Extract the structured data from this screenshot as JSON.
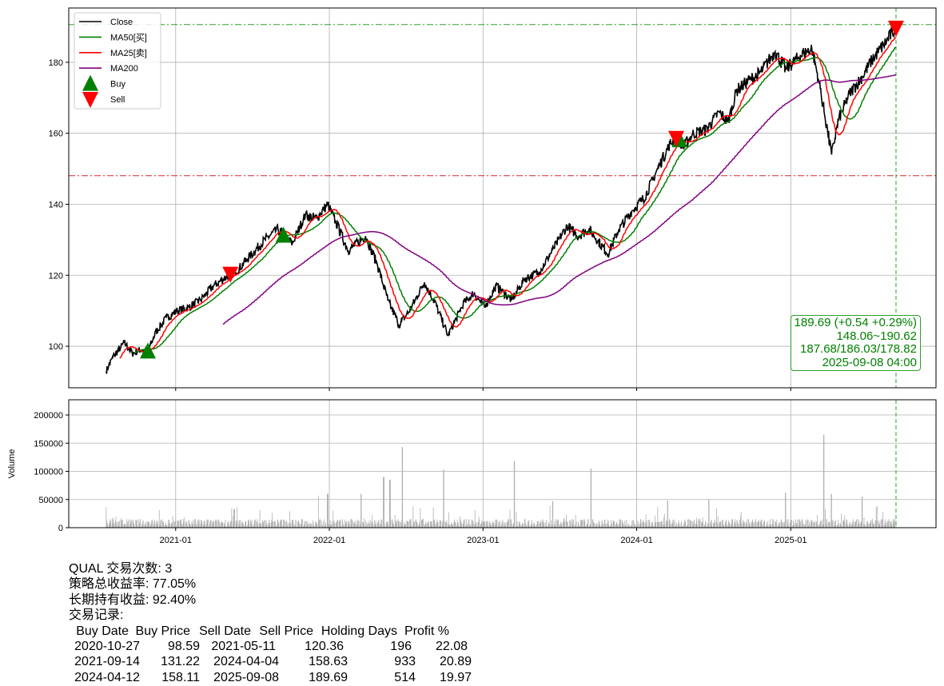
{
  "chart_data": [
    {
      "type": "line",
      "ticker": "QUAL",
      "ylim": [
        88.3,
        195.3
      ],
      "xlim": [
        "2020-04-22",
        "2025-12-12"
      ],
      "yticks": [
        100,
        120,
        140,
        160,
        180
      ],
      "xticks": [
        "2021-01",
        "2022-01",
        "2023-01",
        "2024-01",
        "2025-01"
      ],
      "grid": true,
      "legend": {
        "placement": "top-left",
        "entries": [
          "Close",
          "MA50[买]",
          "MA25[卖]",
          "MA200",
          "Buy",
          "Sell"
        ]
      },
      "colors": {
        "close": "#000000",
        "ma50": "#008000",
        "ma25": "#ff0000",
        "ma200": "#800080",
        "buy": "#008000",
        "sell": "#ff0000"
      },
      "close_series": [
        [
          "2020-07-20",
          93
        ],
        [
          "2020-08-05",
          97
        ],
        [
          "2020-09-01",
          101
        ],
        [
          "2020-09-20",
          98
        ],
        [
          "2020-10-10",
          99
        ],
        [
          "2020-10-27",
          98.59
        ],
        [
          "2020-11-15",
          104
        ],
        [
          "2020-12-10",
          108
        ],
        [
          "2021-01-05",
          110
        ],
        [
          "2021-02-01",
          111
        ],
        [
          "2021-03-01",
          113
        ],
        [
          "2021-04-01",
          117
        ],
        [
          "2021-05-11",
          120.36
        ],
        [
          "2021-06-01",
          122
        ],
        [
          "2021-07-01",
          126
        ],
        [
          "2021-08-01",
          130
        ],
        [
          "2021-09-01",
          133
        ],
        [
          "2021-09-14",
          131.22
        ],
        [
          "2021-10-05",
          129
        ],
        [
          "2021-11-05",
          137
        ],
        [
          "2021-12-01",
          136
        ],
        [
          "2021-12-28",
          140
        ],
        [
          "2022-01-20",
          134
        ],
        [
          "2022-02-15",
          127
        ],
        [
          "2022-03-28",
          131
        ],
        [
          "2022-04-25",
          123
        ],
        [
          "2022-05-20",
          113
        ],
        [
          "2022-06-16",
          106
        ],
        [
          "2022-07-10",
          110
        ],
        [
          "2022-08-15",
          118
        ],
        [
          "2022-09-10",
          112
        ],
        [
          "2022-10-10",
          103
        ],
        [
          "2022-11-15",
          112
        ],
        [
          "2022-12-10",
          115
        ],
        [
          "2023-01-05",
          111
        ],
        [
          "2023-02-01",
          117
        ],
        [
          "2023-03-10",
          113
        ],
        [
          "2023-04-10",
          119
        ],
        [
          "2023-05-15",
          121
        ],
        [
          "2023-06-15",
          127
        ],
        [
          "2023-07-20",
          134
        ],
        [
          "2023-08-15",
          131
        ],
        [
          "2023-09-10",
          133
        ],
        [
          "2023-10-25",
          126
        ],
        [
          "2023-11-20",
          133
        ],
        [
          "2023-12-20",
          138
        ],
        [
          "2024-01-20",
          142
        ],
        [
          "2024-02-20",
          150
        ],
        [
          "2024-03-20",
          157
        ],
        [
          "2024-04-04",
          158.63
        ],
        [
          "2024-04-12",
          158.11
        ],
        [
          "2024-04-20",
          156
        ],
        [
          "2024-05-15",
          160
        ],
        [
          "2024-06-15",
          161
        ],
        [
          "2024-07-15",
          166
        ],
        [
          "2024-08-05",
          163
        ],
        [
          "2024-08-25",
          172
        ],
        [
          "2024-09-25",
          175
        ],
        [
          "2024-10-20",
          177
        ],
        [
          "2024-11-25",
          183
        ],
        [
          "2024-12-20",
          178
        ],
        [
          "2025-01-25",
          182
        ],
        [
          "2025-02-20",
          184
        ],
        [
          "2025-03-10",
          174
        ],
        [
          "2025-04-08",
          154
        ],
        [
          "2025-04-25",
          164
        ],
        [
          "2025-05-20",
          171
        ],
        [
          "2025-06-20",
          176
        ],
        [
          "2025-07-15",
          181
        ],
        [
          "2025-08-10",
          185
        ],
        [
          "2025-09-08",
          189.69
        ]
      ],
      "buy_points": [
        [
          "2020-10-27",
          98.59
        ],
        [
          "2021-09-14",
          131.22
        ],
        [
          "2024-04-12",
          158.11
        ]
      ],
      "sell_points": [
        [
          "2021-05-11",
          120.36
        ],
        [
          "2024-04-04",
          158.63
        ],
        [
          "2025-09-08",
          189.69
        ]
      ],
      "hlines": [
        {
          "value": 190.62,
          "color": "#2ca02c"
        },
        {
          "value": 148.06,
          "color": "#d62728"
        }
      ],
      "vline": "2025-09-08",
      "annotation": [
        "189.69 (+0.54 +0.29%)",
        "148.06~190.62",
        "187.68/186.03/178.82",
        "2025-09-08 04:00"
      ]
    },
    {
      "type": "bar",
      "ylabel": "Volume",
      "ylim": [
        0,
        227000
      ],
      "yticks": [
        0,
        50000,
        100000,
        150000,
        200000
      ],
      "color": "#b0b0b0",
      "typical_volume": 12000,
      "spikes": [
        [
          "2021-05-20",
          33000
        ],
        [
          "2021-12-05",
          57000
        ],
        [
          "2021-12-28",
          60000
        ],
        [
          "2022-03-18",
          60000
        ],
        [
          "2022-05-10",
          90000
        ],
        [
          "2022-05-25",
          85000
        ],
        [
          "2022-06-24",
          143000
        ],
        [
          "2022-09-30",
          103000
        ],
        [
          "2023-03-17",
          118000
        ],
        [
          "2023-06-16",
          47000
        ],
        [
          "2023-09-15",
          105000
        ],
        [
          "2024-03-15",
          48000
        ],
        [
          "2024-06-21",
          50000
        ],
        [
          "2024-12-20",
          62000
        ],
        [
          "2025-03-21",
          165000
        ],
        [
          "2025-04-07",
          60000
        ],
        [
          "2025-06-20",
          55000
        ]
      ]
    }
  ],
  "stats": {
    "title": "QUAL 交易次数: 3",
    "strategy_return": "策略总收益率: 77.05%",
    "hold_return": "长期持有收益: 92.40%",
    "records_label": "交易记录:",
    "columns": [
      "Buy Date",
      "Buy Price",
      "Sell Date",
      "Sell Price",
      "Holding Days",
      "Profit %"
    ],
    "rows": [
      [
        "2020-10-27",
        "98.59",
        "2021-05-11",
        "120.36",
        "196",
        "22.08"
      ],
      [
        "2021-09-14",
        "131.22",
        "2024-04-04",
        "158.63",
        "933",
        "20.89"
      ],
      [
        "2024-04-12",
        "158.11",
        "2025-09-08",
        "189.69",
        "514",
        "19.97"
      ]
    ]
  }
}
